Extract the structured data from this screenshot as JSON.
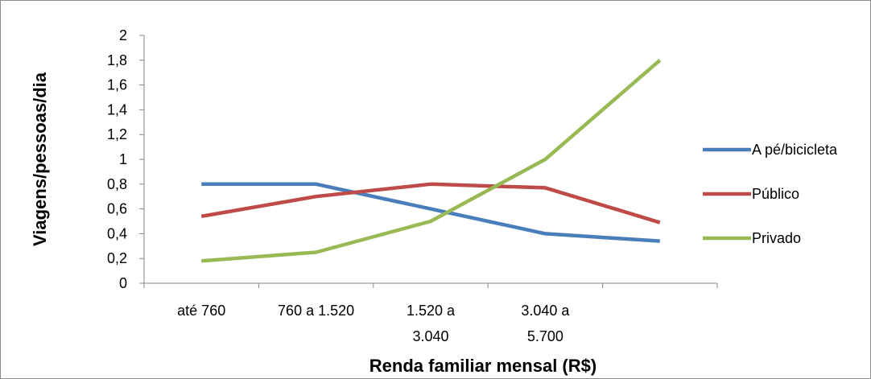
{
  "chart_data": {
    "type": "line",
    "title": "",
    "xlabel": "Renda familiar mensal (R$)",
    "ylabel": "Viagens/pessoas/dia",
    "categories": [
      "até 760",
      "760 a 1.520",
      "1.520 a 3.040",
      "3.040 a 5.700",
      ""
    ],
    "category_lines": [
      [
        "até 760"
      ],
      [
        "760 a 1.520"
      ],
      [
        "1.520 a",
        "3.040"
      ],
      [
        "3.040 a",
        "5.700"
      ],
      []
    ],
    "ylim": [
      0,
      2
    ],
    "y_ticks": [
      "0",
      "0,2",
      "0,4",
      "0,6",
      "0,8",
      "1",
      "1,2",
      "1,4",
      "1,6",
      "1,8",
      "2"
    ],
    "grid": false,
    "legend_position": "right",
    "series": [
      {
        "name": "A pé/bicicleta",
        "color": "#4a7ebb",
        "values": [
          0.8,
          0.8,
          0.6,
          0.4,
          0.34
        ]
      },
      {
        "name": "Público",
        "color": "#be4b48",
        "values": [
          0.54,
          0.7,
          0.8,
          0.77,
          0.49
        ]
      },
      {
        "name": "Privado",
        "color": "#98b954",
        "values": [
          0.18,
          0.25,
          0.5,
          1.0,
          1.8
        ]
      }
    ]
  }
}
